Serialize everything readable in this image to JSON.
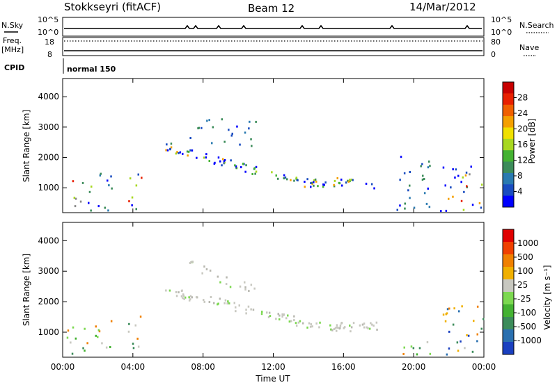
{
  "header": {
    "station": "Stokkseyri (fitACF)",
    "beam": "Beam 12",
    "date": "14/Mar/2012"
  },
  "strips": {
    "nsky_label": "N.Sky",
    "nsky_ticks": [
      "10^5",
      "10^0"
    ],
    "nsearch_label": "N.Search",
    "nsearch_ticks": [
      "10^5",
      "10^0"
    ],
    "freq_label_1": "Freq.",
    "freq_label_2": "[MHz]",
    "freq_ticks": [
      "18",
      "8"
    ],
    "nave_label": "Nave",
    "nave_ticks": [
      "80",
      "0"
    ],
    "cpid_label": "CPID",
    "cpid_value": "normal 150"
  },
  "chart_data": [
    {
      "type": "heatmap",
      "name": "power",
      "xlabel": "Time UT",
      "ylabel": "Slant Range [km]",
      "xlim_hours": [
        0,
        24
      ],
      "ylim_km": [
        180,
        4600
      ],
      "x_ticks": [
        "00:00",
        "04:00",
        "08:00",
        "12:00",
        "16:00",
        "20:00",
        "00:00"
      ],
      "y_ticks": [
        1000,
        2000,
        3000,
        4000
      ],
      "colorbar_label": "Power [dB]",
      "colorbar_ticks": [
        "4",
        "8",
        "12",
        "16",
        "20",
        "24",
        "28"
      ],
      "colorbar_colors": [
        "#0000ff",
        "#1a4cc0",
        "#2a7ab0",
        "#3c8c5a",
        "#44b232",
        "#a8d820",
        "#f0e000",
        "#f4a000",
        "#f06000",
        "#e82000",
        "#c80000"
      ],
      "scatter_regions": [
        {
          "t0": 0.1,
          "t1": 1.6,
          "r0": 250,
          "r1": 1300,
          "level": "mixed"
        },
        {
          "t0": 1.8,
          "t1": 2.8,
          "r0": 250,
          "r1": 1700,
          "level": "low"
        },
        {
          "t0": 3.7,
          "t1": 4.6,
          "r0": 250,
          "r1": 1600,
          "level": "mixed"
        },
        {
          "t0": 5.8,
          "t1": 16.5,
          "r0": 1000,
          "r1": 2400,
          "level": "band"
        },
        {
          "t0": 16.5,
          "t1": 18.2,
          "r0": 1050,
          "r1": 1350,
          "level": "band"
        },
        {
          "t0": 7.2,
          "t1": 11.0,
          "r0": 2400,
          "r1": 3300,
          "level": "low"
        },
        {
          "t0": 19.0,
          "t1": 21.0,
          "r0": 300,
          "r1": 2200,
          "level": "low"
        },
        {
          "t0": 21.5,
          "t1": 24.0,
          "r0": 250,
          "r1": 1900,
          "level": "mixed"
        }
      ]
    },
    {
      "type": "heatmap",
      "name": "velocity",
      "xlabel": "Time UT",
      "ylabel": "Slant Range [km]",
      "xlim_hours": [
        0,
        24
      ],
      "ylim_km": [
        180,
        4600
      ],
      "x_ticks": [
        "00:00",
        "04:00",
        "08:00",
        "12:00",
        "16:00",
        "20:00",
        "00:00"
      ],
      "y_ticks": [
        1000,
        2000,
        3000,
        4000
      ],
      "colorbar_label": "Velocity [m s⁻¹]",
      "colorbar_ticks": [
        "1000",
        "500",
        "100",
        "25",
        "-25",
        "-100",
        "-500",
        "-1000"
      ],
      "colorbar_colors": [
        "#1a40c0",
        "#2a70b0",
        "#3c8c5a",
        "#44b232",
        "#7cd850",
        "#c8c8c0",
        "#f0b000",
        "#f08000",
        "#f04000",
        "#e00000"
      ],
      "scatter_regions": [
        {
          "t0": 0.1,
          "t1": 1.6,
          "r0": 250,
          "r1": 1300,
          "level": "green"
        },
        {
          "t0": 1.8,
          "t1": 2.8,
          "r0": 250,
          "r1": 1700,
          "level": "green"
        },
        {
          "t0": 3.7,
          "t1": 4.6,
          "r0": 250,
          "r1": 1600,
          "level": "green"
        },
        {
          "t0": 5.8,
          "t1": 18.2,
          "r0": 1000,
          "r1": 2400,
          "level": "gray"
        },
        {
          "t0": 7.2,
          "t1": 11.0,
          "r0": 2400,
          "r1": 3300,
          "level": "gray"
        },
        {
          "t0": 19.0,
          "t1": 21.0,
          "r0": 300,
          "r1": 900,
          "level": "green"
        },
        {
          "t0": 21.5,
          "t1": 24.0,
          "r0": 250,
          "r1": 1900,
          "level": "orange"
        }
      ]
    }
  ]
}
